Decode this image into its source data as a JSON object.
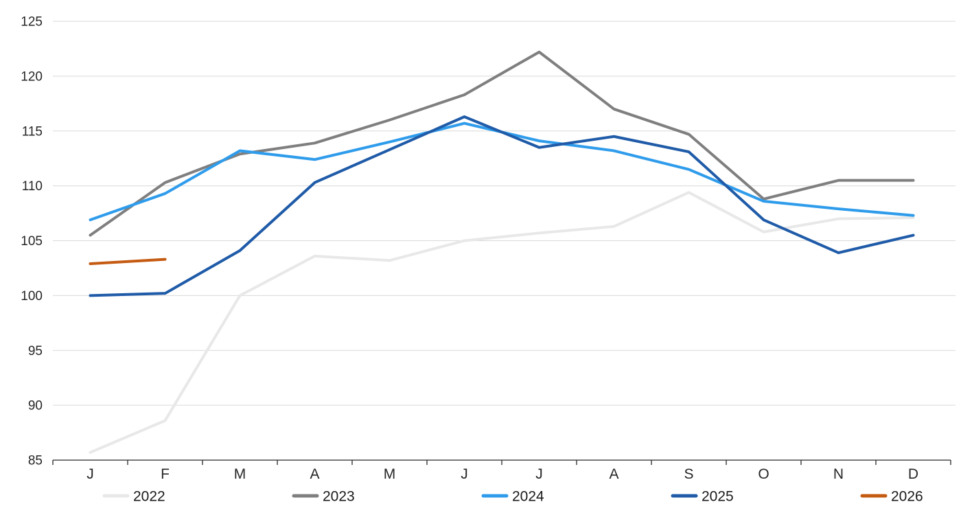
{
  "chart_data": {
    "type": "line",
    "title": "",
    "xlabel": "",
    "ylabel": "",
    "categories": [
      "J",
      "F",
      "M",
      "A",
      "M",
      "J",
      "J",
      "A",
      "S",
      "O",
      "N",
      "D"
    ],
    "y_tick_labels": [
      "85",
      "90",
      "95",
      "100",
      "105",
      "110",
      "115",
      "120",
      "125"
    ],
    "ylim": [
      85,
      125
    ],
    "ytick_step": 5,
    "grid": true,
    "legend_position": "bottom",
    "axis_text_color": "#262626",
    "gridline_color": "#d9d9d9",
    "axis_line_color": "#262626",
    "series": [
      {
        "name": "2022",
        "color": "#e8e8e8",
        "values": [
          85.7,
          88.6,
          100.0,
          103.6,
          103.2,
          105.0,
          105.7,
          106.3,
          109.4,
          105.8,
          107.0,
          107.1
        ]
      },
      {
        "name": "2023",
        "color": "#7f7f7f",
        "values": [
          105.5,
          110.3,
          112.9,
          113.9,
          116.0,
          118.3,
          122.2,
          117.0,
          114.7,
          108.8,
          110.5,
          110.5
        ]
      },
      {
        "name": "2024",
        "color": "#2f9ceb",
        "values": [
          106.9,
          109.3,
          113.2,
          112.4,
          114.0,
          115.7,
          114.1,
          113.2,
          111.5,
          108.6,
          107.9,
          107.3
        ]
      },
      {
        "name": "2025",
        "color": "#1f5ba8",
        "values": [
          100.0,
          100.2,
          104.1,
          110.3,
          113.3,
          116.3,
          113.5,
          114.5,
          113.1,
          106.9,
          103.9,
          105.5
        ]
      },
      {
        "name": "2026",
        "color": "#c55a11",
        "values": [
          102.9,
          103.3
        ]
      }
    ]
  }
}
